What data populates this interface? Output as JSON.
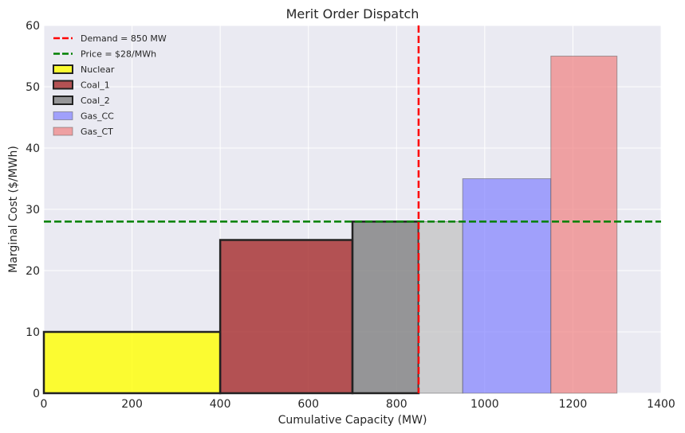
{
  "chart_data": {
    "type": "bar",
    "title": "Merit Order Dispatch",
    "xlabel": "Cumulative Capacity (MW)",
    "ylabel": "Marginal Cost ($/MWh)",
    "xlim": [
      0,
      1400
    ],
    "ylim": [
      0,
      60
    ],
    "xticks": [
      0,
      200,
      400,
      600,
      800,
      1000,
      1200,
      1400
    ],
    "yticks": [
      0,
      10,
      20,
      30,
      40,
      50,
      60
    ],
    "grid": true,
    "legend_position": "top-left",
    "blocks": [
      {
        "name": "Nuclear",
        "start": 0,
        "end": 400,
        "cost": 10,
        "color": "#ffff00",
        "dispatched": true
      },
      {
        "name": "Coal_1",
        "start": 400,
        "end": 700,
        "cost": 25,
        "color": "#a52a2a",
        "dispatched": true
      },
      {
        "name": "Coal_2",
        "start": 700,
        "end": 850,
        "cost": 28,
        "color": "#808080",
        "dispatched": true
      },
      {
        "name": "",
        "start": 850,
        "end": 950,
        "cost": 28,
        "color": "#c0c0c0",
        "dispatched": false
      },
      {
        "name": "Gas_CC",
        "start": 950,
        "end": 1150,
        "cost": 35,
        "color": "#8080ff",
        "dispatched": false
      },
      {
        "name": "Gas_CT",
        "start": 1150,
        "end": 1300,
        "cost": 55,
        "color": "#f08080",
        "dispatched": false
      }
    ],
    "demand": {
      "value": 850,
      "label": "Demand = 850 MW",
      "color": "#ff0000"
    },
    "price": {
      "value": 28,
      "label": "Price = $28/MWh",
      "color": "#008000"
    },
    "legend": [
      {
        "label": "Demand = 850 MW",
        "kind": "line",
        "color": "#ff0000"
      },
      {
        "label": "Price = $28/MWh",
        "kind": "line",
        "color": "#008000"
      },
      {
        "label": "Nuclear",
        "kind": "patch",
        "color": "#ffff00",
        "dispatched": true
      },
      {
        "label": "Coal_1",
        "kind": "patch",
        "color": "#a52a2a",
        "dispatched": true
      },
      {
        "label": "Coal_2",
        "kind": "patch",
        "color": "#808080",
        "dispatched": true
      },
      {
        "label": "Gas_CC",
        "kind": "patch",
        "color": "#8080ff",
        "dispatched": false
      },
      {
        "label": "Gas_CT",
        "kind": "patch",
        "color": "#f08080",
        "dispatched": false
      }
    ],
    "colors": {
      "plot_bg": "#eaeaf2",
      "grid": "#ffffff",
      "text": "#262626"
    }
  }
}
